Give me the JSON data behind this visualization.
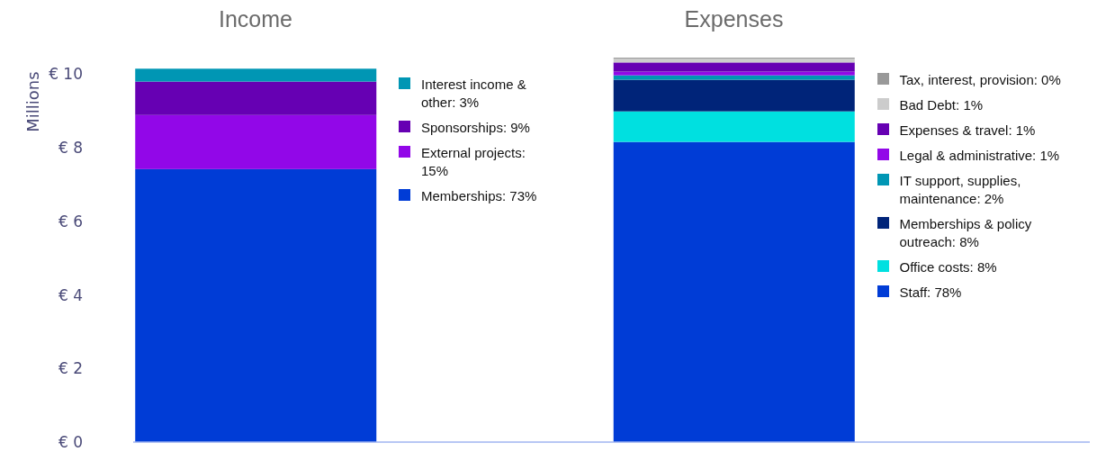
{
  "chart_data": {
    "type": "bar",
    "stacked": true,
    "categories": [
      "Income",
      "Expenses"
    ],
    "ylabel": "Millions",
    "ylim": [
      0,
      10.5
    ],
    "yticks": [
      {
        "value": 0,
        "label": "€ 0"
      },
      {
        "value": 2,
        "label": "€ 2"
      },
      {
        "value": 4,
        "label": "€ 4"
      },
      {
        "value": 6,
        "label": "€ 6"
      },
      {
        "value": 8,
        "label": "€ 8"
      },
      {
        "value": 10,
        "label": "€ 10"
      }
    ],
    "grid": false,
    "legend": "right",
    "series": [
      {
        "name": "Memberships: 73%",
        "color": "#003cd6",
        "values": [
          7.42,
          null
        ]
      },
      {
        "name": "External projects: 15%",
        "color": "#9207e8",
        "values": [
          1.47,
          null
        ]
      },
      {
        "name": "Sponsorships: 9%",
        "color": "#6600b3",
        "values": [
          0.91,
          null
        ]
      },
      {
        "name": "Interest income & other: 3%",
        "color": "#0096b4",
        "values": [
          0.35,
          null
        ]
      },
      {
        "name": "Staff: 78%",
        "color": "#003cd6",
        "values": [
          null,
          8.16
        ]
      },
      {
        "name": "Office costs: 8%",
        "color": "#00e0e0",
        "values": [
          null,
          0.83
        ]
      },
      {
        "name": "Memberships & policy outreach: 8%",
        "color": "#002479",
        "values": [
          null,
          0.86
        ]
      },
      {
        "name": "IT support, supplies, maintenance: 2%",
        "color": "#0096b4",
        "values": [
          null,
          0.12
        ]
      },
      {
        "name": "Legal & administrative: 1%",
        "color": "#9207e8",
        "values": [
          null,
          0.1
        ]
      },
      {
        "name": "Expenses & travel: 1%",
        "color": "#6600b3",
        "values": [
          null,
          0.25
        ]
      },
      {
        "name": "Bad Debt: 1%",
        "color": "#cccccc",
        "values": [
          null,
          0.1
        ]
      },
      {
        "name": "Tax, interest, provision: 0%",
        "color": "#999999",
        "values": [
          null,
          0.03
        ]
      }
    ]
  }
}
